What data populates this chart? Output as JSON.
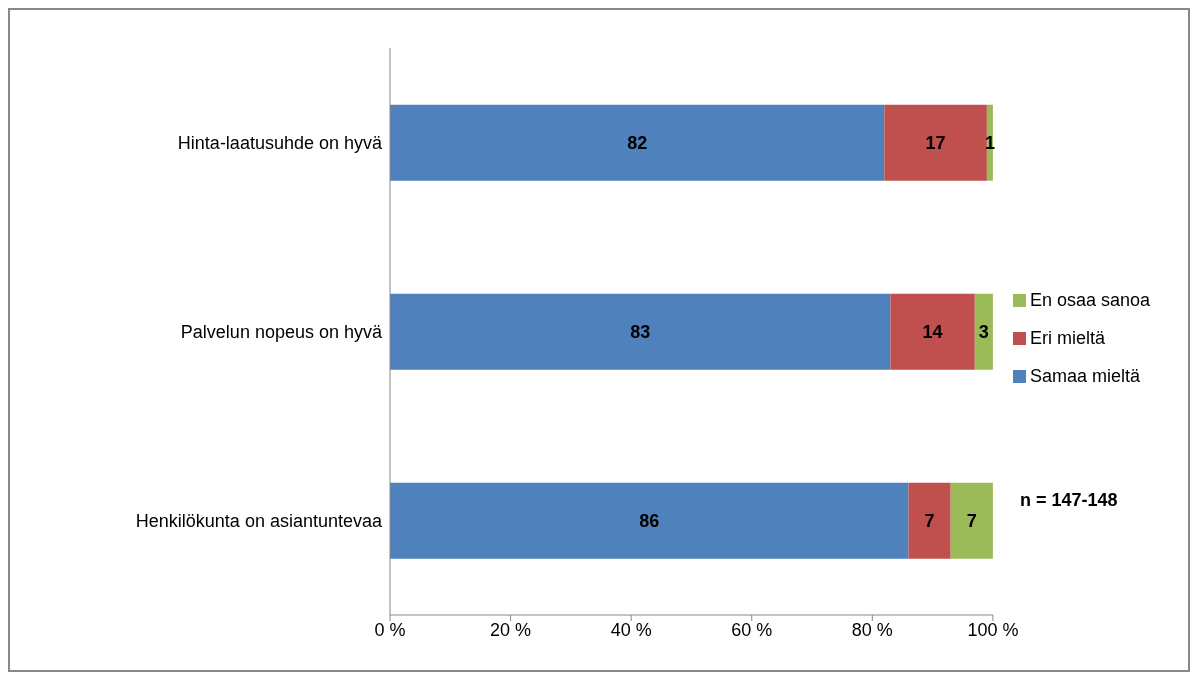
{
  "chart_data": {
    "type": "bar",
    "orientation": "horizontal",
    "stacked": true,
    "categories": [
      "Hinta-laatusuhde on hyvä",
      "Palvelun nopeus on hyvä",
      "Henkilökunta on asiantuntevaa"
    ],
    "series": [
      {
        "name": "Samaa mieltä",
        "color": "#4f81bd",
        "values": [
          82,
          83,
          86
        ]
      },
      {
        "name": "Eri mieltä",
        "color": "#c0504d",
        "values": [
          17,
          14,
          7
        ]
      },
      {
        "name": "En osaa sanoa",
        "color": "#9bbb59",
        "values": [
          1,
          3,
          7
        ]
      }
    ],
    "xlim": [
      0,
      100
    ],
    "xticks": [
      {
        "value": 0,
        "label": "0 %"
      },
      {
        "value": 20,
        "label": "20 %"
      },
      {
        "value": 40,
        "label": "40 %"
      },
      {
        "value": 60,
        "label": "60 %"
      },
      {
        "value": 80,
        "label": "80 %"
      },
      {
        "value": 100,
        "label": "100 %"
      }
    ],
    "data_labels": true,
    "legend": "right",
    "grid": false,
    "annotations": [
      "n = 147-148"
    ]
  }
}
